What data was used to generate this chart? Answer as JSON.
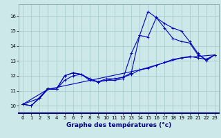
{
  "xlabel": "Graphe des températures (°c)",
  "background_color": "#cce8e8",
  "grid_color": "#aacccc",
  "line_color": "#0000bb",
  "xlim": [
    -0.5,
    23.5
  ],
  "ylim": [
    9.5,
    16.8
  ],
  "xticks": [
    0,
    1,
    2,
    3,
    4,
    5,
    6,
    7,
    8,
    9,
    10,
    11,
    12,
    13,
    14,
    15,
    16,
    17,
    18,
    19,
    20,
    21,
    22,
    23
  ],
  "yticks": [
    10,
    11,
    12,
    13,
    14,
    15,
    16
  ],
  "line1": {
    "x": [
      0,
      1,
      2,
      3,
      4,
      5,
      6,
      7,
      8,
      9,
      10,
      11,
      12,
      13,
      14,
      15,
      16,
      17,
      18,
      19,
      20,
      21,
      22,
      23
    ],
    "y": [
      10.1,
      10.0,
      10.5,
      11.15,
      11.1,
      12.0,
      12.2,
      12.1,
      11.7,
      11.6,
      11.7,
      11.7,
      11.8,
      13.5,
      14.7,
      16.3,
      15.9,
      15.5,
      15.2,
      15.0,
      14.3,
      13.5,
      13.0,
      13.4
    ]
  },
  "line2": {
    "x": [
      0,
      1,
      3,
      4,
      5,
      6,
      7,
      8,
      9,
      10,
      11,
      12,
      13,
      14,
      15,
      16,
      17,
      18,
      19,
      20,
      21,
      22,
      23
    ],
    "y": [
      10.1,
      10.0,
      11.15,
      11.1,
      12.0,
      12.2,
      12.1,
      11.8,
      11.6,
      11.7,
      11.8,
      11.9,
      12.2,
      14.7,
      14.6,
      15.9,
      15.2,
      14.5,
      14.3,
      14.2,
      13.4,
      13.1,
      13.4
    ]
  },
  "line3": {
    "x": [
      0,
      2,
      3,
      4,
      5,
      6,
      7,
      8,
      9,
      10,
      11,
      12,
      13,
      14,
      15,
      16,
      17,
      18,
      19,
      20,
      21,
      22,
      23
    ],
    "y": [
      10.1,
      10.5,
      11.1,
      11.1,
      11.7,
      12.0,
      12.1,
      11.8,
      11.6,
      11.8,
      11.8,
      11.9,
      12.1,
      12.4,
      12.5,
      12.7,
      12.9,
      13.1,
      13.2,
      13.3,
      13.2,
      13.1,
      13.4
    ]
  },
  "line4": {
    "x": [
      0,
      3,
      14,
      19,
      23
    ],
    "y": [
      10.1,
      11.1,
      12.4,
      13.2,
      13.4
    ]
  }
}
